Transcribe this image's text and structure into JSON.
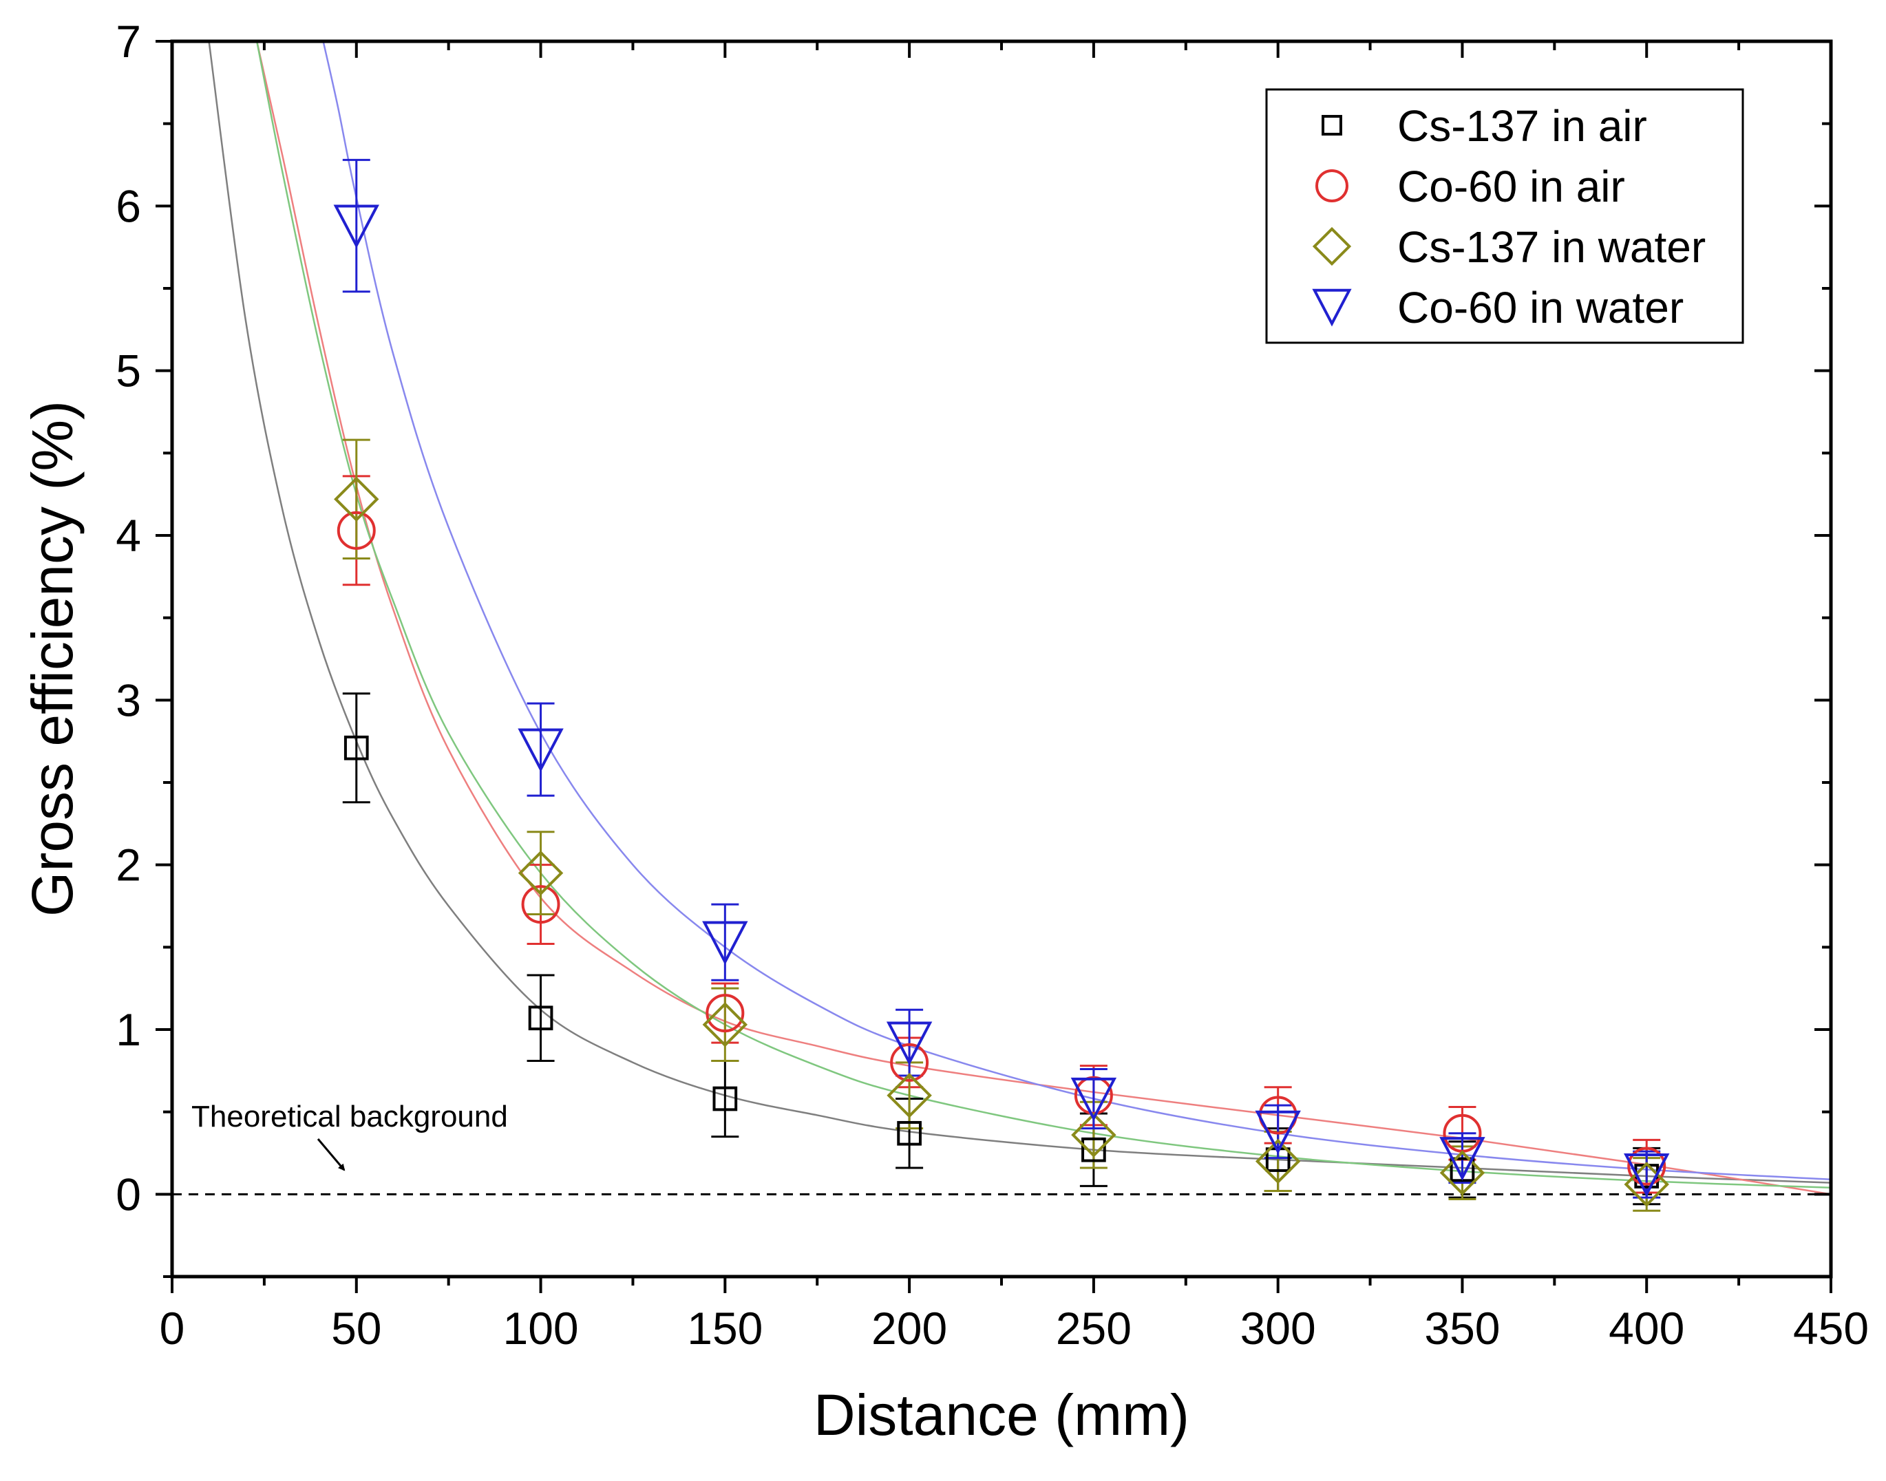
{
  "chart_data": {
    "type": "scatter",
    "title": "",
    "xlabel": "Distance (mm)",
    "ylabel": "Gross efficiency (%)",
    "xlim": [
      0,
      450
    ],
    "ylim": [
      -0.5,
      7
    ],
    "xticks": [
      "0",
      "50",
      "100",
      "150",
      "200",
      "250",
      "300",
      "350",
      "400",
      "450"
    ],
    "yticks": [
      "0",
      "1",
      "2",
      "3",
      "4",
      "5",
      "6",
      "7"
    ],
    "grid": false,
    "legend_position": "top-right",
    "series": [
      {
        "name": "Cs-137 in air",
        "marker": "square",
        "color": "#000000",
        "fit_color": "#7f7f7f",
        "x": [
          50,
          100,
          150,
          200,
          250,
          300,
          350,
          400
        ],
        "y": [
          2.71,
          1.07,
          0.58,
          0.37,
          0.27,
          0.21,
          0.15,
          0.11
        ],
        "error": [
          0.33,
          0.26,
          0.23,
          0.21,
          0.22,
          0.19,
          0.17,
          0.17
        ],
        "fit": [
          [
            10,
            7.0
          ],
          [
            20,
            5.3
          ],
          [
            30,
            4.15
          ],
          [
            40,
            3.35
          ],
          [
            50,
            2.75
          ],
          [
            60,
            2.28
          ],
          [
            75,
            1.75
          ],
          [
            100,
            1.12
          ],
          [
            125,
            0.8
          ],
          [
            150,
            0.6
          ],
          [
            175,
            0.48
          ],
          [
            200,
            0.38
          ],
          [
            250,
            0.27
          ],
          [
            300,
            0.21
          ],
          [
            350,
            0.16
          ],
          [
            400,
            0.11
          ],
          [
            450,
            0.07
          ]
        ]
      },
      {
        "name": "Co-60 in air",
        "marker": "circle",
        "color": "#e03030",
        "fit_color": "#ee7f7f",
        "x": [
          50,
          100,
          150,
          200,
          250,
          300,
          350,
          400
        ],
        "y": [
          4.03,
          1.76,
          1.1,
          0.8,
          0.6,
          0.48,
          0.37,
          0.17
        ],
        "error": [
          0.33,
          0.24,
          0.18,
          0.15,
          0.18,
          0.17,
          0.16,
          0.16
        ],
        "fit": [
          [
            23,
            7.0
          ],
          [
            30,
            6.3
          ],
          [
            40,
            5.25
          ],
          [
            50,
            4.3
          ],
          [
            60,
            3.55
          ],
          [
            75,
            2.7
          ],
          [
            100,
            1.8
          ],
          [
            125,
            1.35
          ],
          [
            150,
            1.05
          ],
          [
            175,
            0.9
          ],
          [
            200,
            0.78
          ],
          [
            250,
            0.62
          ],
          [
            300,
            0.48
          ],
          [
            350,
            0.34
          ],
          [
            400,
            0.18
          ],
          [
            450,
            0.0
          ]
        ]
      },
      {
        "name": "Cs-137 in water",
        "marker": "diamond",
        "color": "#8a8a1a",
        "fit_color": "#7fc77f",
        "x": [
          50,
          100,
          150,
          200,
          250,
          300,
          350,
          400
        ],
        "y": [
          4.22,
          1.95,
          1.03,
          0.6,
          0.36,
          0.2,
          0.13,
          0.06
        ],
        "error": [
          0.36,
          0.25,
          0.22,
          0.2,
          0.2,
          0.18,
          0.16,
          0.16
        ],
        "fit": [
          [
            23,
            7.0
          ],
          [
            30,
            6.2
          ],
          [
            40,
            5.15
          ],
          [
            50,
            4.25
          ],
          [
            60,
            3.6
          ],
          [
            75,
            2.8
          ],
          [
            100,
            1.95
          ],
          [
            125,
            1.4
          ],
          [
            150,
            1.03
          ],
          [
            175,
            0.78
          ],
          [
            200,
            0.6
          ],
          [
            250,
            0.37
          ],
          [
            300,
            0.23
          ],
          [
            350,
            0.14
          ],
          [
            400,
            0.08
          ],
          [
            450,
            0.04
          ]
        ]
      },
      {
        "name": "Co-60 in water",
        "marker": "triangle-down",
        "color": "#2020d0",
        "fit_color": "#8888ee",
        "x": [
          50,
          100,
          150,
          200,
          250,
          300,
          350,
          400
        ],
        "y": [
          5.88,
          2.7,
          1.53,
          0.92,
          0.58,
          0.38,
          0.22,
          0.12
        ],
        "error": [
          0.4,
          0.28,
          0.23,
          0.2,
          0.18,
          0.16,
          0.15,
          0.14
        ],
        "fit": [
          [
            41,
            7.0
          ],
          [
            45,
            6.6
          ],
          [
            50,
            6.05
          ],
          [
            60,
            5.1
          ],
          [
            75,
            4.05
          ],
          [
            100,
            2.8
          ],
          [
            125,
            2.0
          ],
          [
            150,
            1.5
          ],
          [
            175,
            1.15
          ],
          [
            200,
            0.9
          ],
          [
            250,
            0.58
          ],
          [
            300,
            0.37
          ],
          [
            350,
            0.24
          ],
          [
            400,
            0.15
          ],
          [
            450,
            0.09
          ]
        ]
      }
    ],
    "annotations": [
      {
        "text": "Theoretical background",
        "points_to": [
          47,
          0.0
        ]
      }
    ],
    "reference_line": {
      "y": 0,
      "style": "dashed",
      "color": "#000000"
    }
  }
}
